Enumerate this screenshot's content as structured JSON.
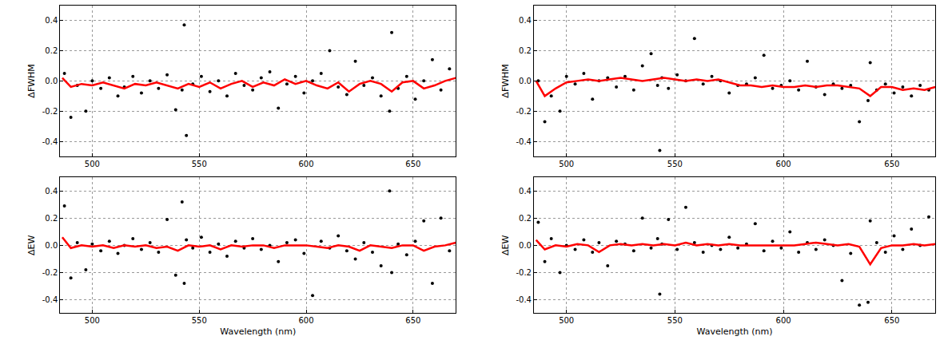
{
  "chart_data": [
    {
      "type": "scatter",
      "y_label": "ΔFWHM",
      "xlim": [
        485,
        670
      ],
      "ylim": [
        -0.5,
        0.5
      ],
      "xticks": [
        500,
        550,
        600,
        650
      ],
      "yticks": [
        -0.4,
        -0.2,
        {
          "value": 0,
          "label": "0.0"
        },
        0.2,
        0.4
      ],
      "grid": true,
      "series": [
        {
          "type": "scatter",
          "color": "#000000",
          "marker": "circle",
          "x": [
            487,
            490,
            493,
            497,
            500,
            504,
            508,
            512,
            515,
            519,
            523,
            527,
            531,
            535,
            539,
            542,
            543,
            544,
            547,
            551,
            555,
            559,
            563,
            567,
            571,
            575,
            579,
            583,
            587,
            591,
            595,
            599,
            603,
            607,
            611,
            615,
            619,
            623,
            627,
            631,
            635,
            639,
            640,
            643,
            647,
            651,
            655,
            659,
            663,
            667
          ],
          "values": [
            0.05,
            -0.24,
            -0.03,
            -0.2,
            0.0,
            -0.05,
            0.02,
            -0.1,
            -0.04,
            0.03,
            -0.08,
            0.0,
            -0.05,
            0.04,
            -0.19,
            -0.06,
            0.37,
            -0.36,
            -0.02,
            0.03,
            -0.07,
            0.0,
            -0.1,
            0.05,
            -0.03,
            -0.06,
            0.02,
            0.06,
            -0.18,
            -0.02,
            0.03,
            -0.08,
            0.0,
            0.05,
            0.2,
            -0.04,
            -0.09,
            0.13,
            -0.03,
            0.02,
            -0.1,
            -0.2,
            0.32,
            -0.05,
            0.03,
            -0.12,
            0.0,
            0.14,
            -0.06,
            0.08
          ]
        },
        {
          "type": "line",
          "color": "#ff0000",
          "line_style": "solid",
          "x": [
            486,
            490,
            495,
            500,
            505,
            510,
            515,
            520,
            525,
            530,
            535,
            540,
            545,
            550,
            555,
            560,
            565,
            570,
            575,
            580,
            585,
            590,
            595,
            600,
            605,
            610,
            615,
            620,
            625,
            630,
            635,
            640,
            645,
            650,
            655,
            660,
            665,
            670
          ],
          "values": [
            0.02,
            -0.04,
            -0.02,
            -0.03,
            -0.01,
            -0.03,
            -0.05,
            -0.02,
            -0.03,
            -0.01,
            -0.03,
            -0.05,
            -0.02,
            -0.04,
            -0.01,
            -0.05,
            -0.02,
            0.0,
            -0.04,
            -0.01,
            -0.03,
            0.01,
            -0.02,
            0.0,
            -0.03,
            -0.05,
            -0.01,
            -0.07,
            -0.02,
            0.0,
            -0.02,
            -0.07,
            -0.01,
            0.0,
            -0.05,
            -0.03,
            0.0,
            0.02
          ]
        }
      ]
    },
    {
      "type": "scatter",
      "y_label": "ΔEW",
      "x_label": "Wavelength (nm)",
      "xlim": [
        485,
        670
      ],
      "ylim": [
        -0.5,
        0.5
      ],
      "xticks": [
        500,
        550,
        600,
        650
      ],
      "yticks": [
        -0.4,
        -0.2,
        {
          "value": 0,
          "label": "0.0"
        },
        0.2,
        0.4
      ],
      "grid": true,
      "series": [
        {
          "type": "scatter",
          "color": "#000000",
          "marker": "circle",
          "x": [
            487,
            490,
            493,
            497,
            500,
            504,
            508,
            512,
            515,
            519,
            523,
            527,
            531,
            535,
            539,
            542,
            543,
            544,
            547,
            551,
            555,
            559,
            563,
            567,
            571,
            575,
            579,
            583,
            587,
            591,
            595,
            599,
            603,
            607,
            611,
            615,
            619,
            623,
            627,
            631,
            635,
            639,
            640,
            643,
            647,
            651,
            655,
            659,
            663,
            667
          ],
          "values": [
            0.29,
            -0.24,
            0.02,
            -0.18,
            0.01,
            -0.04,
            0.03,
            -0.06,
            0.0,
            0.05,
            -0.03,
            0.02,
            -0.05,
            0.19,
            -0.22,
            0.32,
            -0.28,
            0.04,
            -0.02,
            0.06,
            -0.05,
            0.01,
            -0.08,
            0.03,
            -0.02,
            0.05,
            -0.03,
            0.0,
            -0.12,
            0.02,
            0.04,
            -0.06,
            -0.37,
            0.03,
            -0.02,
            0.07,
            -0.04,
            -0.1,
            0.02,
            -0.05,
            -0.15,
            0.4,
            -0.2,
            0.01,
            -0.07,
            0.03,
            0.18,
            -0.28,
            0.2,
            -0.04
          ]
        },
        {
          "type": "line",
          "color": "#ff0000",
          "line_style": "solid",
          "x": [
            486,
            490,
            495,
            500,
            505,
            510,
            515,
            520,
            525,
            530,
            535,
            540,
            545,
            550,
            555,
            560,
            565,
            570,
            575,
            580,
            585,
            590,
            595,
            600,
            605,
            610,
            615,
            620,
            625,
            630,
            635,
            640,
            645,
            650,
            655,
            660,
            665,
            670
          ],
          "values": [
            0.06,
            -0.02,
            0.0,
            -0.01,
            0.0,
            -0.02,
            0.0,
            -0.01,
            0.0,
            -0.02,
            -0.01,
            -0.04,
            0.0,
            -0.01,
            0.0,
            -0.03,
            0.0,
            -0.01,
            0.0,
            0.0,
            -0.02,
            0.0,
            0.0,
            0.0,
            -0.01,
            -0.02,
            0.0,
            -0.01,
            -0.04,
            0.0,
            -0.01,
            -0.02,
            0.0,
            0.0,
            -0.04,
            -0.01,
            0.0,
            0.02
          ]
        }
      ]
    },
    {
      "type": "scatter",
      "y_label": "ΔFWHM",
      "xlim": [
        485,
        670
      ],
      "ylim": [
        -0.5,
        0.5
      ],
      "xticks": [
        500,
        550,
        600,
        650
      ],
      "yticks": [
        -0.4,
        -0.2,
        {
          "value": 0,
          "label": "0.0"
        },
        0.2,
        0.4
      ],
      "grid": true,
      "series": [
        {
          "type": "scatter",
          "color": "#000000",
          "marker": "circle",
          "x": [
            487,
            490,
            493,
            497,
            500,
            504,
            508,
            512,
            515,
            519,
            523,
            527,
            531,
            535,
            539,
            542,
            543,
            544,
            547,
            551,
            555,
            559,
            563,
            567,
            571,
            575,
            579,
            583,
            587,
            591,
            595,
            599,
            603,
            607,
            611,
            615,
            619,
            623,
            627,
            631,
            635,
            639,
            640,
            643,
            647,
            651,
            655,
            659,
            663,
            667
          ],
          "values": [
            0.0,
            -0.27,
            -0.1,
            -0.2,
            0.03,
            -0.02,
            0.05,
            -0.12,
            0.0,
            0.02,
            -0.04,
            0.03,
            -0.06,
            0.1,
            0.18,
            -0.03,
            -0.46,
            0.02,
            -0.05,
            0.04,
            0.0,
            0.28,
            -0.02,
            0.03,
            0.0,
            -0.08,
            -0.03,
            -0.02,
            0.02,
            0.17,
            -0.05,
            -0.03,
            0.0,
            -0.06,
            0.13,
            -0.04,
            -0.09,
            -0.02,
            -0.05,
            -0.03,
            -0.27,
            -0.13,
            0.12,
            -0.06,
            -0.02,
            -0.08,
            -0.04,
            -0.1,
            -0.03,
            -0.06
          ]
        },
        {
          "type": "line",
          "color": "#ff0000",
          "line_style": "solid",
          "x": [
            486,
            490,
            495,
            500,
            505,
            510,
            515,
            520,
            525,
            530,
            535,
            540,
            545,
            550,
            555,
            560,
            565,
            570,
            575,
            580,
            585,
            590,
            595,
            600,
            605,
            610,
            615,
            620,
            625,
            630,
            635,
            640,
            645,
            650,
            655,
            660,
            665,
            670
          ],
          "values": [
            0.0,
            -0.1,
            -0.05,
            -0.01,
            0.0,
            0.01,
            0.0,
            0.01,
            0.02,
            0.01,
            0.0,
            0.01,
            0.02,
            0.01,
            0.0,
            0.01,
            0.0,
            0.01,
            -0.01,
            -0.03,
            -0.03,
            -0.04,
            -0.03,
            -0.04,
            -0.04,
            -0.03,
            -0.04,
            -0.03,
            -0.03,
            -0.04,
            -0.05,
            -0.1,
            -0.04,
            -0.04,
            -0.06,
            -0.05,
            -0.06,
            -0.04
          ]
        }
      ]
    },
    {
      "type": "scatter",
      "y_label": "ΔEW",
      "x_label": "Wavelength (nm)",
      "xlim": [
        485,
        670
      ],
      "ylim": [
        -0.5,
        0.5
      ],
      "xticks": [
        500,
        550,
        600,
        650
      ],
      "yticks": [
        -0.4,
        -0.2,
        {
          "value": 0,
          "label": "0.0"
        },
        0.2,
        0.4
      ],
      "grid": true,
      "series": [
        {
          "type": "scatter",
          "color": "#000000",
          "marker": "circle",
          "x": [
            487,
            490,
            493,
            497,
            500,
            504,
            508,
            512,
            515,
            519,
            523,
            527,
            531,
            535,
            539,
            542,
            543,
            544,
            547,
            551,
            555,
            559,
            563,
            567,
            571,
            575,
            579,
            583,
            587,
            591,
            595,
            599,
            603,
            607,
            611,
            615,
            619,
            623,
            627,
            631,
            635,
            639,
            640,
            643,
            647,
            651,
            655,
            659,
            663,
            667
          ],
          "values": [
            0.17,
            -0.12,
            0.05,
            -0.2,
            0.0,
            -0.03,
            0.04,
            -0.05,
            0.02,
            -0.15,
            0.03,
            0.01,
            -0.04,
            0.2,
            -0.02,
            0.05,
            -0.36,
            0.01,
            0.19,
            -0.03,
            0.28,
            0.02,
            -0.05,
            0.0,
            -0.03,
            0.06,
            -0.02,
            0.01,
            0.16,
            -0.04,
            0.03,
            -0.02,
            0.1,
            -0.05,
            0.02,
            -0.03,
            0.04,
            0.0,
            -0.26,
            -0.06,
            -0.44,
            -0.42,
            0.18,
            0.02,
            -0.05,
            0.07,
            -0.03,
            0.12,
            0.0,
            0.21
          ]
        },
        {
          "type": "line",
          "color": "#ff0000",
          "line_style": "solid",
          "x": [
            486,
            490,
            495,
            500,
            505,
            510,
            515,
            520,
            525,
            530,
            535,
            540,
            545,
            550,
            555,
            560,
            565,
            570,
            575,
            580,
            585,
            590,
            595,
            600,
            605,
            610,
            615,
            620,
            625,
            630,
            635,
            640,
            645,
            650,
            655,
            660,
            665,
            670
          ],
          "values": [
            0.04,
            -0.03,
            0.0,
            -0.01,
            0.01,
            0.0,
            -0.05,
            0.0,
            0.01,
            0.0,
            0.01,
            0.0,
            0.01,
            0.0,
            0.02,
            0.0,
            0.01,
            0.0,
            0.01,
            0.0,
            0.0,
            0.0,
            0.0,
            0.0,
            0.0,
            0.01,
            0.02,
            0.01,
            0.0,
            0.01,
            -0.01,
            -0.14,
            -0.02,
            0.0,
            0.0,
            0.01,
            0.0,
            0.01
          ]
        }
      ]
    }
  ]
}
